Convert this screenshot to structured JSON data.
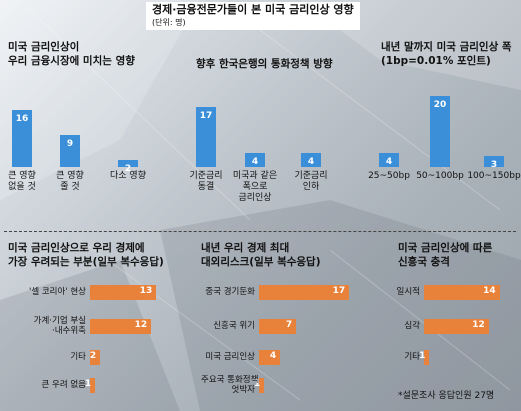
{
  "header": {
    "title": "경제·금융전문가들이 본 미국 금리인상 영향",
    "unit": "(단위: 명)"
  },
  "colors": {
    "top_bars": "#3a8fd8",
    "bottom_bars": "#e8813a",
    "text": "#111111",
    "title_bg": "#ffffff"
  },
  "footnote": "*설문조사 응답인원 27명",
  "chart_data": [
    {
      "type": "bar",
      "title": "미국 금리인상이\n우리 금융시장에 미치는 영향",
      "categories": [
        "큰 영향\n없을 것",
        "큰 영향\n줄 것",
        "다소 영향"
      ],
      "values": [
        16,
        9,
        2
      ],
      "orientation": "vertical",
      "color": "#3a8fd8"
    },
    {
      "type": "bar",
      "title": "향후 한국은행의 통화정책 방향",
      "categories": [
        "기준금리\n동결",
        "미국과 같은\n폭으로\n금리인상",
        "기준금리\n인하"
      ],
      "values": [
        17,
        4,
        4
      ],
      "orientation": "vertical",
      "color": "#3a8fd8"
    },
    {
      "type": "bar",
      "title": "내년 말까지 미국 금리인상 폭\n(1bp=0.01% 포인트)",
      "categories": [
        "25~50bp",
        "50~100bp",
        "100~150bp"
      ],
      "values": [
        4,
        20,
        3
      ],
      "orientation": "vertical",
      "color": "#3a8fd8"
    },
    {
      "type": "bar",
      "title": "미국 금리인상으로 우리 경제에\n가장 우려되는 부분(일부 복수응답)",
      "categories": [
        "'셀 코리아' 현상",
        "가계·기업 부실\n·내수위축",
        "기타",
        "큰 우려 없음"
      ],
      "values": [
        13,
        12,
        2,
        1
      ],
      "orientation": "horizontal",
      "color": "#e8813a"
    },
    {
      "type": "bar",
      "title": "내년 우리 경제 최대\n대외리스크(일부 복수응답)",
      "categories": [
        "중국 경기둔화",
        "신흥국 위기",
        "미국 금리인상",
        "주요국 통화정책\n엇박자"
      ],
      "values": [
        17,
        7,
        4,
        1
      ],
      "orientation": "horizontal",
      "color": "#e8813a"
    },
    {
      "type": "bar",
      "title": "미국 금리인상에 따른\n신흥국 충격",
      "categories": [
        "일시적",
        "심각",
        "기타"
      ],
      "values": [
        14,
        12,
        1
      ],
      "orientation": "horizontal",
      "color": "#e8813a"
    }
  ]
}
